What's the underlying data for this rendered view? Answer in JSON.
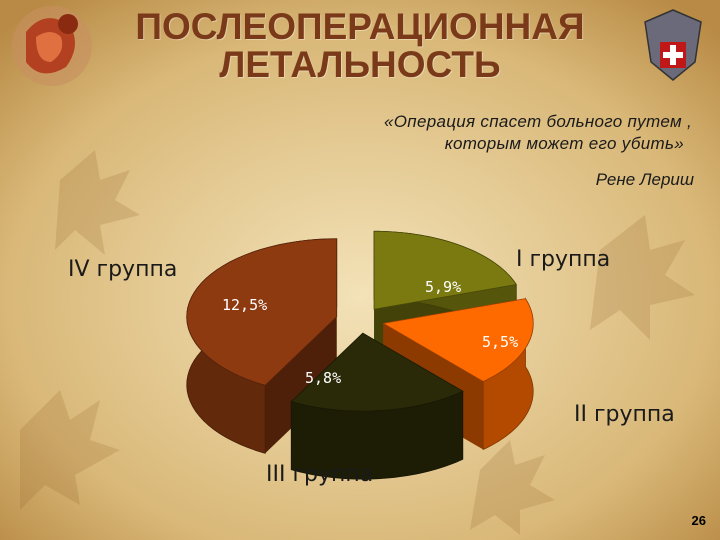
{
  "slide": {
    "title_line1": "ПОСЛЕОПЕРАЦИОННАЯ",
    "title_line2": "ЛЕТАЛЬНОСТЬ",
    "quote_line1": "«Операция  спасет  больного  путем ,",
    "quote_line2": "которым  может  его  убить»",
    "quote_author": "Рене  Лериш",
    "page_number": "26"
  },
  "colors": {
    "background": "#d8b878",
    "title": "#7a3a1a",
    "slice_iv": "#8e3a10",
    "slice_i": "#7a7a10",
    "slice_ii": "#ff6a00",
    "slice_iii": "#2a2a08"
  },
  "chart_data": {
    "type": "pie",
    "title": "",
    "categories": [
      "I группа",
      "II группа",
      "III группа",
      "IV группа"
    ],
    "values": [
      5.9,
      5.5,
      5.8,
      12.5
    ],
    "value_labels": [
      "5,9%",
      "5,5%",
      "5,8%",
      "12,5%"
    ],
    "exploded": true,
    "three_d": true
  }
}
